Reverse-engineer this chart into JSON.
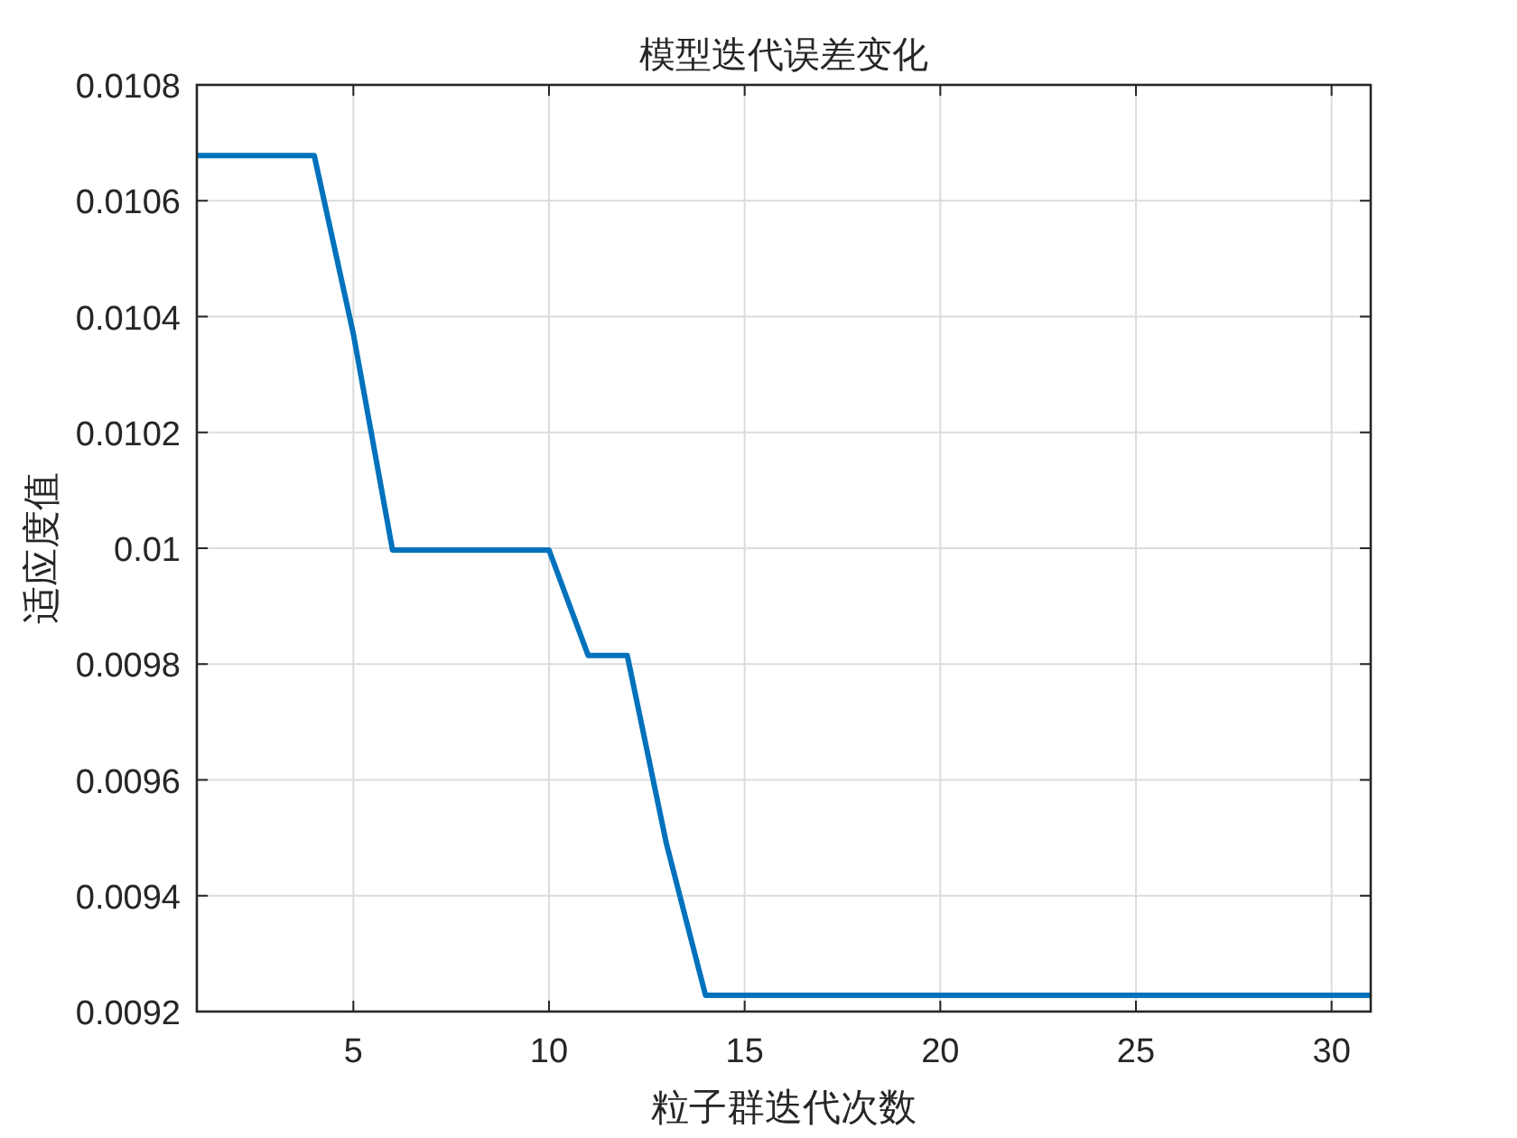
{
  "chart_data": {
    "type": "line",
    "title": "模型迭代误差变化",
    "xlabel": "粒子群迭代次数",
    "ylabel": "适应度值",
    "x": [
      1,
      2,
      3,
      4,
      5,
      6,
      7,
      8,
      9,
      10,
      11,
      12,
      13,
      14,
      15,
      16,
      17,
      18,
      19,
      20,
      21,
      22,
      23,
      24,
      25,
      26,
      27,
      28,
      29,
      30,
      31
    ],
    "series": [
      {
        "color": "#0072bd",
        "values": [
          0.010678,
          0.010678,
          0.010678,
          0.010678,
          0.01037,
          0.009997,
          0.009997,
          0.009997,
          0.009997,
          0.009997,
          0.009815,
          0.009815,
          0.00949,
          0.009228,
          0.009228,
          0.009228,
          0.009228,
          0.009228,
          0.009228,
          0.009228,
          0.009228,
          0.009228,
          0.009228,
          0.009228,
          0.009228,
          0.009228,
          0.009228,
          0.009228,
          0.009228,
          0.009228,
          0.009228
        ]
      }
    ],
    "xlim": [
      1,
      31
    ],
    "xticks": [
      5,
      10,
      15,
      20,
      25,
      30
    ],
    "ylim": [
      0.0092,
      0.0108
    ],
    "yticks": [
      0.0092,
      0.0094,
      0.0096,
      0.0098,
      {
        "value": 0.01,
        "label": "0.01"
      },
      0.0102,
      0.0104,
      0.0106,
      0.0108
    ],
    "grid": true
  }
}
